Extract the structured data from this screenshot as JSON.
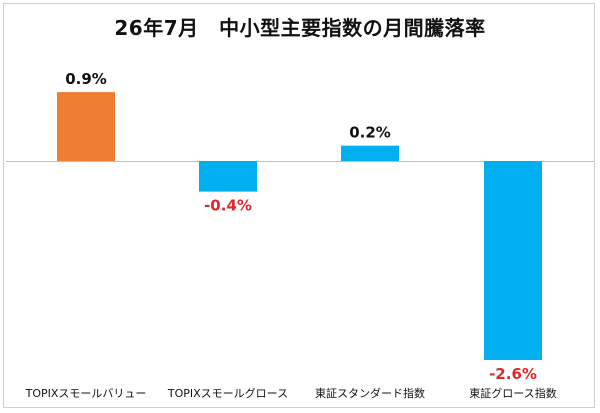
{
  "chart_data": {
    "type": "bar",
    "title": "26年7月　中小型主要指数の月間騰落率",
    "categories": [
      "TOPIXスモールバリュー",
      "TOPIXスモールグロース",
      "東証スタンダード指数",
      "東証グロース指数"
    ],
    "values": [
      0.9,
      -0.4,
      0.2,
      -2.6
    ],
    "value_labels": [
      "0.9%",
      "-0.4%",
      "0.2%",
      "-2.6%"
    ],
    "bar_colors": [
      "#ED7D31",
      "#00B0F0",
      "#00B0F0",
      "#00B0F0"
    ],
    "label_colors": [
      "#111111",
      "#E0262B",
      "#111111",
      "#E0262B"
    ],
    "ylim": [
      -2.6,
      0.9
    ],
    "grid": false,
    "xlabel": "",
    "ylabel": ""
  }
}
